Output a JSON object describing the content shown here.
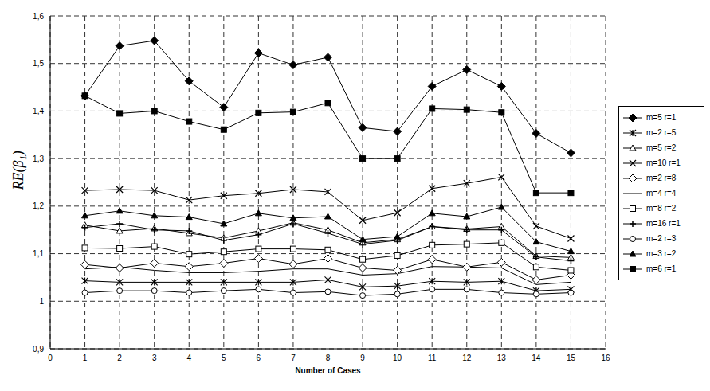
{
  "chart_data": {
    "type": "line",
    "x_label": "Number of Cases",
    "y_label": "RE(β₁)",
    "x": [
      1,
      2,
      3,
      4,
      5,
      6,
      7,
      8,
      9,
      10,
      11,
      12,
      13,
      14,
      15
    ],
    "xlim": [
      0,
      16
    ],
    "xticks": [
      0,
      1,
      2,
      3,
      4,
      5,
      6,
      7,
      8,
      9,
      10,
      11,
      12,
      13,
      14,
      15,
      16
    ],
    "ylim": [
      0.9,
      1.6
    ],
    "yticks": [
      {
        "value": 0.9,
        "label": "0,9"
      },
      1,
      {
        "value": 1.1,
        "label": "1,1"
      },
      {
        "value": 1.2,
        "label": "1,2"
      },
      {
        "value": 1.3,
        "label": "1,3"
      },
      {
        "value": 1.4,
        "label": "1,4"
      },
      {
        "value": 1.5,
        "label": "1,5"
      },
      {
        "value": 1.6,
        "label": "1,6"
      }
    ],
    "grid": true,
    "legend": "right",
    "series": [
      {
        "name": "m=5 r=1",
        "color": "#000000",
        "marker": "diamond",
        "values": [
          1.432,
          1.537,
          1.548,
          1.463,
          1.408,
          1.522,
          1.497,
          1.513,
          1.365,
          1.357,
          1.452,
          1.487,
          1.452,
          1.353,
          1.312
        ]
      },
      {
        "name": "m=2 r=5",
        "color": "#000000",
        "marker": "asterisk",
        "values": [
          1.043,
          1.04,
          1.04,
          1.04,
          1.04,
          1.04,
          1.04,
          1.045,
          1.03,
          1.032,
          1.042,
          1.04,
          1.042,
          1.022,
          1.025
        ]
      },
      {
        "name": "m=5 r=2",
        "color": "#000000",
        "marker": "triangle-open",
        "values": [
          1.16,
          1.148,
          1.153,
          1.143,
          1.133,
          1.148,
          1.165,
          1.15,
          1.123,
          1.13,
          1.157,
          1.152,
          1.157,
          1.095,
          1.092
        ]
      },
      {
        "name": "m=10 r=1",
        "color": "#000000",
        "marker": "x",
        "values": [
          1.233,
          1.235,
          1.233,
          1.213,
          1.222,
          1.227,
          1.235,
          1.23,
          1.17,
          1.186,
          1.237,
          1.248,
          1.261,
          1.158,
          1.132
        ]
      },
      {
        "name": "m=2 r=8",
        "color": "#000000",
        "marker": "diamond-open",
        "values": [
          1.077,
          1.07,
          1.08,
          1.073,
          1.08,
          1.09,
          1.078,
          1.09,
          1.07,
          1.065,
          1.088,
          1.072,
          1.082,
          1.045,
          1.055
        ]
      },
      {
        "name": "m=4 r=4",
        "color": "#000000",
        "marker": "none",
        "values": [
          1.068,
          1.072,
          1.065,
          1.06,
          1.06,
          1.063,
          1.068,
          1.068,
          1.055,
          1.058,
          1.073,
          1.072,
          1.07,
          1.035,
          1.04
        ]
      },
      {
        "name": "m=8 r=2",
        "color": "#000000",
        "marker": "square-open",
        "values": [
          1.112,
          1.111,
          1.115,
          1.099,
          1.104,
          1.11,
          1.11,
          1.108,
          1.088,
          1.096,
          1.118,
          1.12,
          1.123,
          1.072,
          1.065
        ]
      },
      {
        "name": "m=16 r=1",
        "color": "#000000",
        "marker": "plus",
        "values": [
          1.155,
          1.163,
          1.15,
          1.148,
          1.128,
          1.14,
          1.163,
          1.143,
          1.12,
          1.128,
          1.157,
          1.15,
          1.15,
          1.093,
          1.085
        ]
      },
      {
        "name": "m=2 r=3",
        "color": "#000000",
        "marker": "circle-open",
        "values": [
          1.018,
          1.022,
          1.022,
          1.018,
          1.022,
          1.025,
          1.018,
          1.02,
          1.012,
          1.015,
          1.025,
          1.025,
          1.018,
          1.015,
          1.018
        ]
      },
      {
        "name": "m=3 r=2",
        "color": "#000000",
        "marker": "triangle",
        "values": [
          1.18,
          1.19,
          1.18,
          1.177,
          1.163,
          1.185,
          1.175,
          1.178,
          1.13,
          1.136,
          1.185,
          1.178,
          1.198,
          1.125,
          1.105
        ]
      },
      {
        "name": "m=6 r=1",
        "color": "#000000",
        "marker": "square",
        "values": [
          1.432,
          1.395,
          1.4,
          1.378,
          1.361,
          1.396,
          1.398,
          1.417,
          1.3,
          1.3,
          1.405,
          1.403,
          1.397,
          1.228,
          1.228
        ]
      }
    ]
  }
}
